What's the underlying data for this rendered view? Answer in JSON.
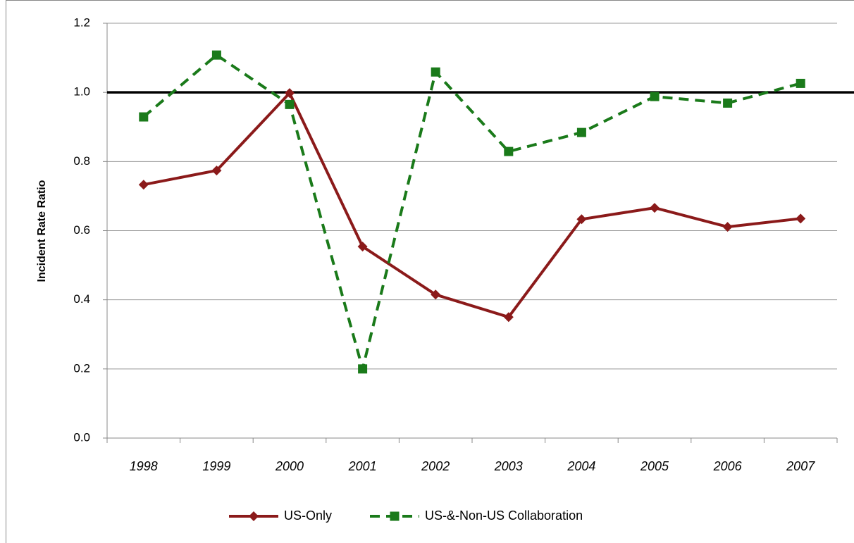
{
  "chart_data": {
    "type": "line",
    "y_label": "Incident Rate Ratio",
    "categories": [
      "1998",
      "1999",
      "2000",
      "2001",
      "2002",
      "2003",
      "2004",
      "2005",
      "2006",
      "2007"
    ],
    "series": [
      {
        "name": "US-Only",
        "color": "#8b1a1a",
        "marker": "diamond",
        "dashed": false,
        "values": [
          0.733,
          0.774,
          0.998,
          0.554,
          0.415,
          0.35,
          0.633,
          0.666,
          0.611,
          0.635
        ]
      },
      {
        "name": "US-&-Non-US Collaboration",
        "color": "#1a7a1a",
        "marker": "square",
        "dashed": true,
        "values": [
          0.929,
          1.108,
          0.965,
          0.2,
          1.059,
          0.829,
          0.884,
          0.988,
          0.969,
          1.026
        ]
      }
    ],
    "reference_line": 1,
    "ylim": [
      0,
      1.2
    ],
    "yticks": [
      {
        "value": 0,
        "label": "0.0"
      },
      0.2,
      0.4,
      0.6,
      0.8,
      {
        "value": 1,
        "label": "1.0"
      },
      1.2
    ],
    "grid": true,
    "legend": "bottom"
  }
}
